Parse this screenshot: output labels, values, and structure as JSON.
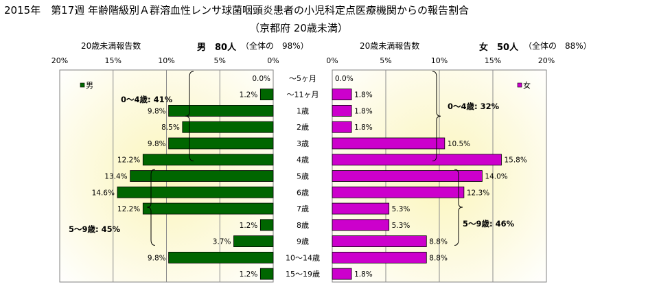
{
  "title_line1": "2015年　第17週 年齢階級別Ａ群溶血性レンサ球菌咽頭炎患者の小児科定点医療機関からの報告割合",
  "title_line2": "（京都府 20歳未満）",
  "left_panel": {
    "subtitle": "20歳未満報告数",
    "sex_label": "男　80人",
    "total_label": "（全体の　98%）"
  },
  "right_panel": {
    "subtitle": "20歳未満報告数",
    "sex_label": "女　50人",
    "total_label": "（全体の　88%）"
  },
  "chart_data": [
    {
      "type": "bar",
      "orientation": "horizontal",
      "direction": "right-to-left",
      "categories": [
        "～5ヶ月",
        "～11ヶ月",
        "1歳",
        "2歳",
        "3歳",
        "4歳",
        "5歳",
        "6歳",
        "7歳",
        "8歳",
        "9歳",
        "10～14歳",
        "15～19歳"
      ],
      "series": [
        {
          "name": "男",
          "values": [
            0.0,
            1.2,
            9.8,
            8.5,
            9.8,
            12.2,
            13.4,
            14.6,
            12.2,
            1.2,
            3.7,
            9.8,
            1.2
          ],
          "color": "#006600"
        }
      ],
      "data_labels": [
        "0.0%",
        "1.2%",
        "9.8%",
        "8.5%",
        "9.8%",
        "12.2%",
        "13.4%",
        "14.6%",
        "12.2%",
        "1.2%",
        "3.7%",
        "9.8%",
        "1.2%"
      ],
      "xlim": [
        0,
        20
      ],
      "x_ticks": [
        "20%",
        "15%",
        "10%",
        "5%",
        "0%"
      ],
      "legend_position": "top-left",
      "grid": true,
      "annotations": [
        "0～4歳: 41%",
        "5～9歳: 45%"
      ]
    },
    {
      "type": "bar",
      "orientation": "horizontal",
      "direction": "left-to-right",
      "categories": [
        "～5ヶ月",
        "～11ヶ月",
        "1歳",
        "2歳",
        "3歳",
        "4歳",
        "5歳",
        "6歳",
        "7歳",
        "8歳",
        "9歳",
        "10～14歳",
        "15～19歳"
      ],
      "series": [
        {
          "name": "女",
          "values": [
            0.0,
            1.8,
            1.8,
            1.8,
            10.5,
            15.8,
            14.0,
            12.3,
            5.3,
            5.3,
            8.8,
            8.8,
            1.8
          ],
          "color": "#cc00cc"
        }
      ],
      "data_labels": [
        "0.0%",
        "1.8%",
        "1.8%",
        "1.8%",
        "10.5%",
        "15.8%",
        "14.0%",
        "12.3%",
        "5.3%",
        "5.3%",
        "8.8%",
        "8.8%",
        "1.8%"
      ],
      "xlim": [
        0,
        20
      ],
      "x_ticks": [
        "0%",
        "5%",
        "10%",
        "15%",
        "20%"
      ],
      "legend_position": "top-right",
      "grid": true,
      "annotations": [
        "0～4歳: 32%",
        "5～9歳: 46%"
      ]
    }
  ]
}
